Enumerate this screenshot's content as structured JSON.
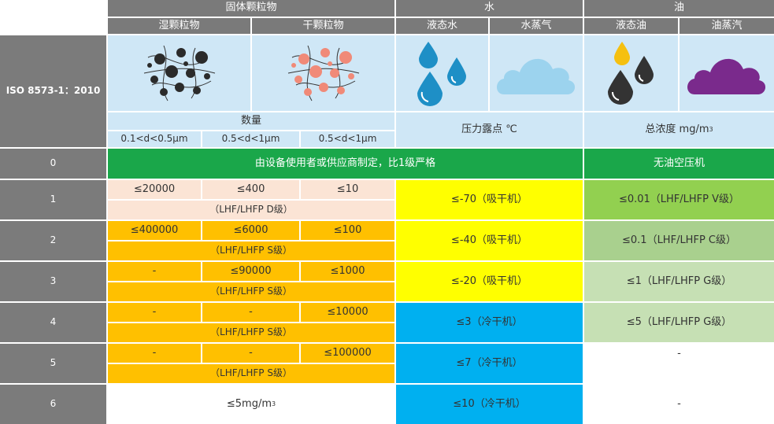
{
  "header": {
    "solid_particles": "固体颗粒物",
    "water": "水",
    "oil": "油",
    "wet_particles": "湿颗粒物",
    "dry_particles": "干颗粒物",
    "liquid_water": "液态水",
    "water_vapor": "水蒸气",
    "liquid_oil": "液态油",
    "oil_vapor": "油蒸汽"
  },
  "standard_label": "ISO 8573-1：2010",
  "subheader": {
    "quantity": "数量",
    "size_1": "0.1<d<0.5μm",
    "size_2": "0.5<d<1μm",
    "size_3": "0.5<d<1μm",
    "pressure_dewpoint": "压力露点 ℃",
    "total_concentration": "总浓度 mg/m",
    "total_concentration_sup": "3"
  },
  "rows": {
    "r0": {
      "class": "0",
      "solid_water": "由设备使用者或供应商制定，比1级严格",
      "oil": "无油空压机"
    },
    "r1": {
      "class": "1",
      "p1": "≤20000",
      "p2": "≤400",
      "p3": "≤10",
      "grade": "（LHF/LHFP D级）",
      "water": "≤-70（吸干机）",
      "oil": "≤0.01（LHF/LHFP V级）"
    },
    "r2": {
      "class": "2",
      "p1": "≤400000",
      "p2": "≤6000",
      "p3": "≤100",
      "grade": "（LHF/LHFP S级）",
      "water": "≤-40（吸干机）",
      "oil": "≤0.1（LHF/LHFP C级）"
    },
    "r3": {
      "class": "3",
      "p1": "-",
      "p2": "≤90000",
      "p3": "≤1000",
      "grade": "（LHF/LHFP S级）",
      "water": "≤-20（吸干机）",
      "oil": "≤1（LHF/LHFP G级）"
    },
    "r4": {
      "class": "4",
      "p1": "-",
      "p2": "-",
      "p3": "≤10000",
      "grade": "（LHF/LHFP S级）",
      "water": "≤3（冷干机）",
      "oil": "≤5（LHF/LHFP G级）"
    },
    "r5": {
      "class": "5",
      "p1": "-",
      "p2": "-",
      "p3": "≤100000",
      "grade": "（LHF/LHFP S级）",
      "water": "≤7（冷干机）",
      "oil": "-"
    },
    "r6": {
      "class": "6",
      "solid": "≤5mg/m",
      "solid_sup": "3",
      "water": "≤10（冷干机）",
      "oil": "-"
    }
  },
  "colors": {
    "header_gray": "#7a7a7a",
    "light_blue": "#cfe7f6",
    "green": "#1aa74a",
    "pink": "#fbe4d5",
    "orange": "#ffc000",
    "yellow": "#ffff00",
    "blue": "#00b0f0",
    "oil_green_1": "#92d050",
    "oil_green_2": "#a9d08e",
    "oil_green_3": "#c6e0b4"
  },
  "icons": {
    "wet_particles": "black-particles-with-fibers-icon",
    "dry_particles": "salmon-particles-with-fibers-icon",
    "liquid_water": "blue-water-droplets-icon",
    "water_vapor": "light-blue-cloud-icon",
    "liquid_oil": "oil-droplets-icon",
    "oil_vapor": "purple-cloud-icon"
  }
}
